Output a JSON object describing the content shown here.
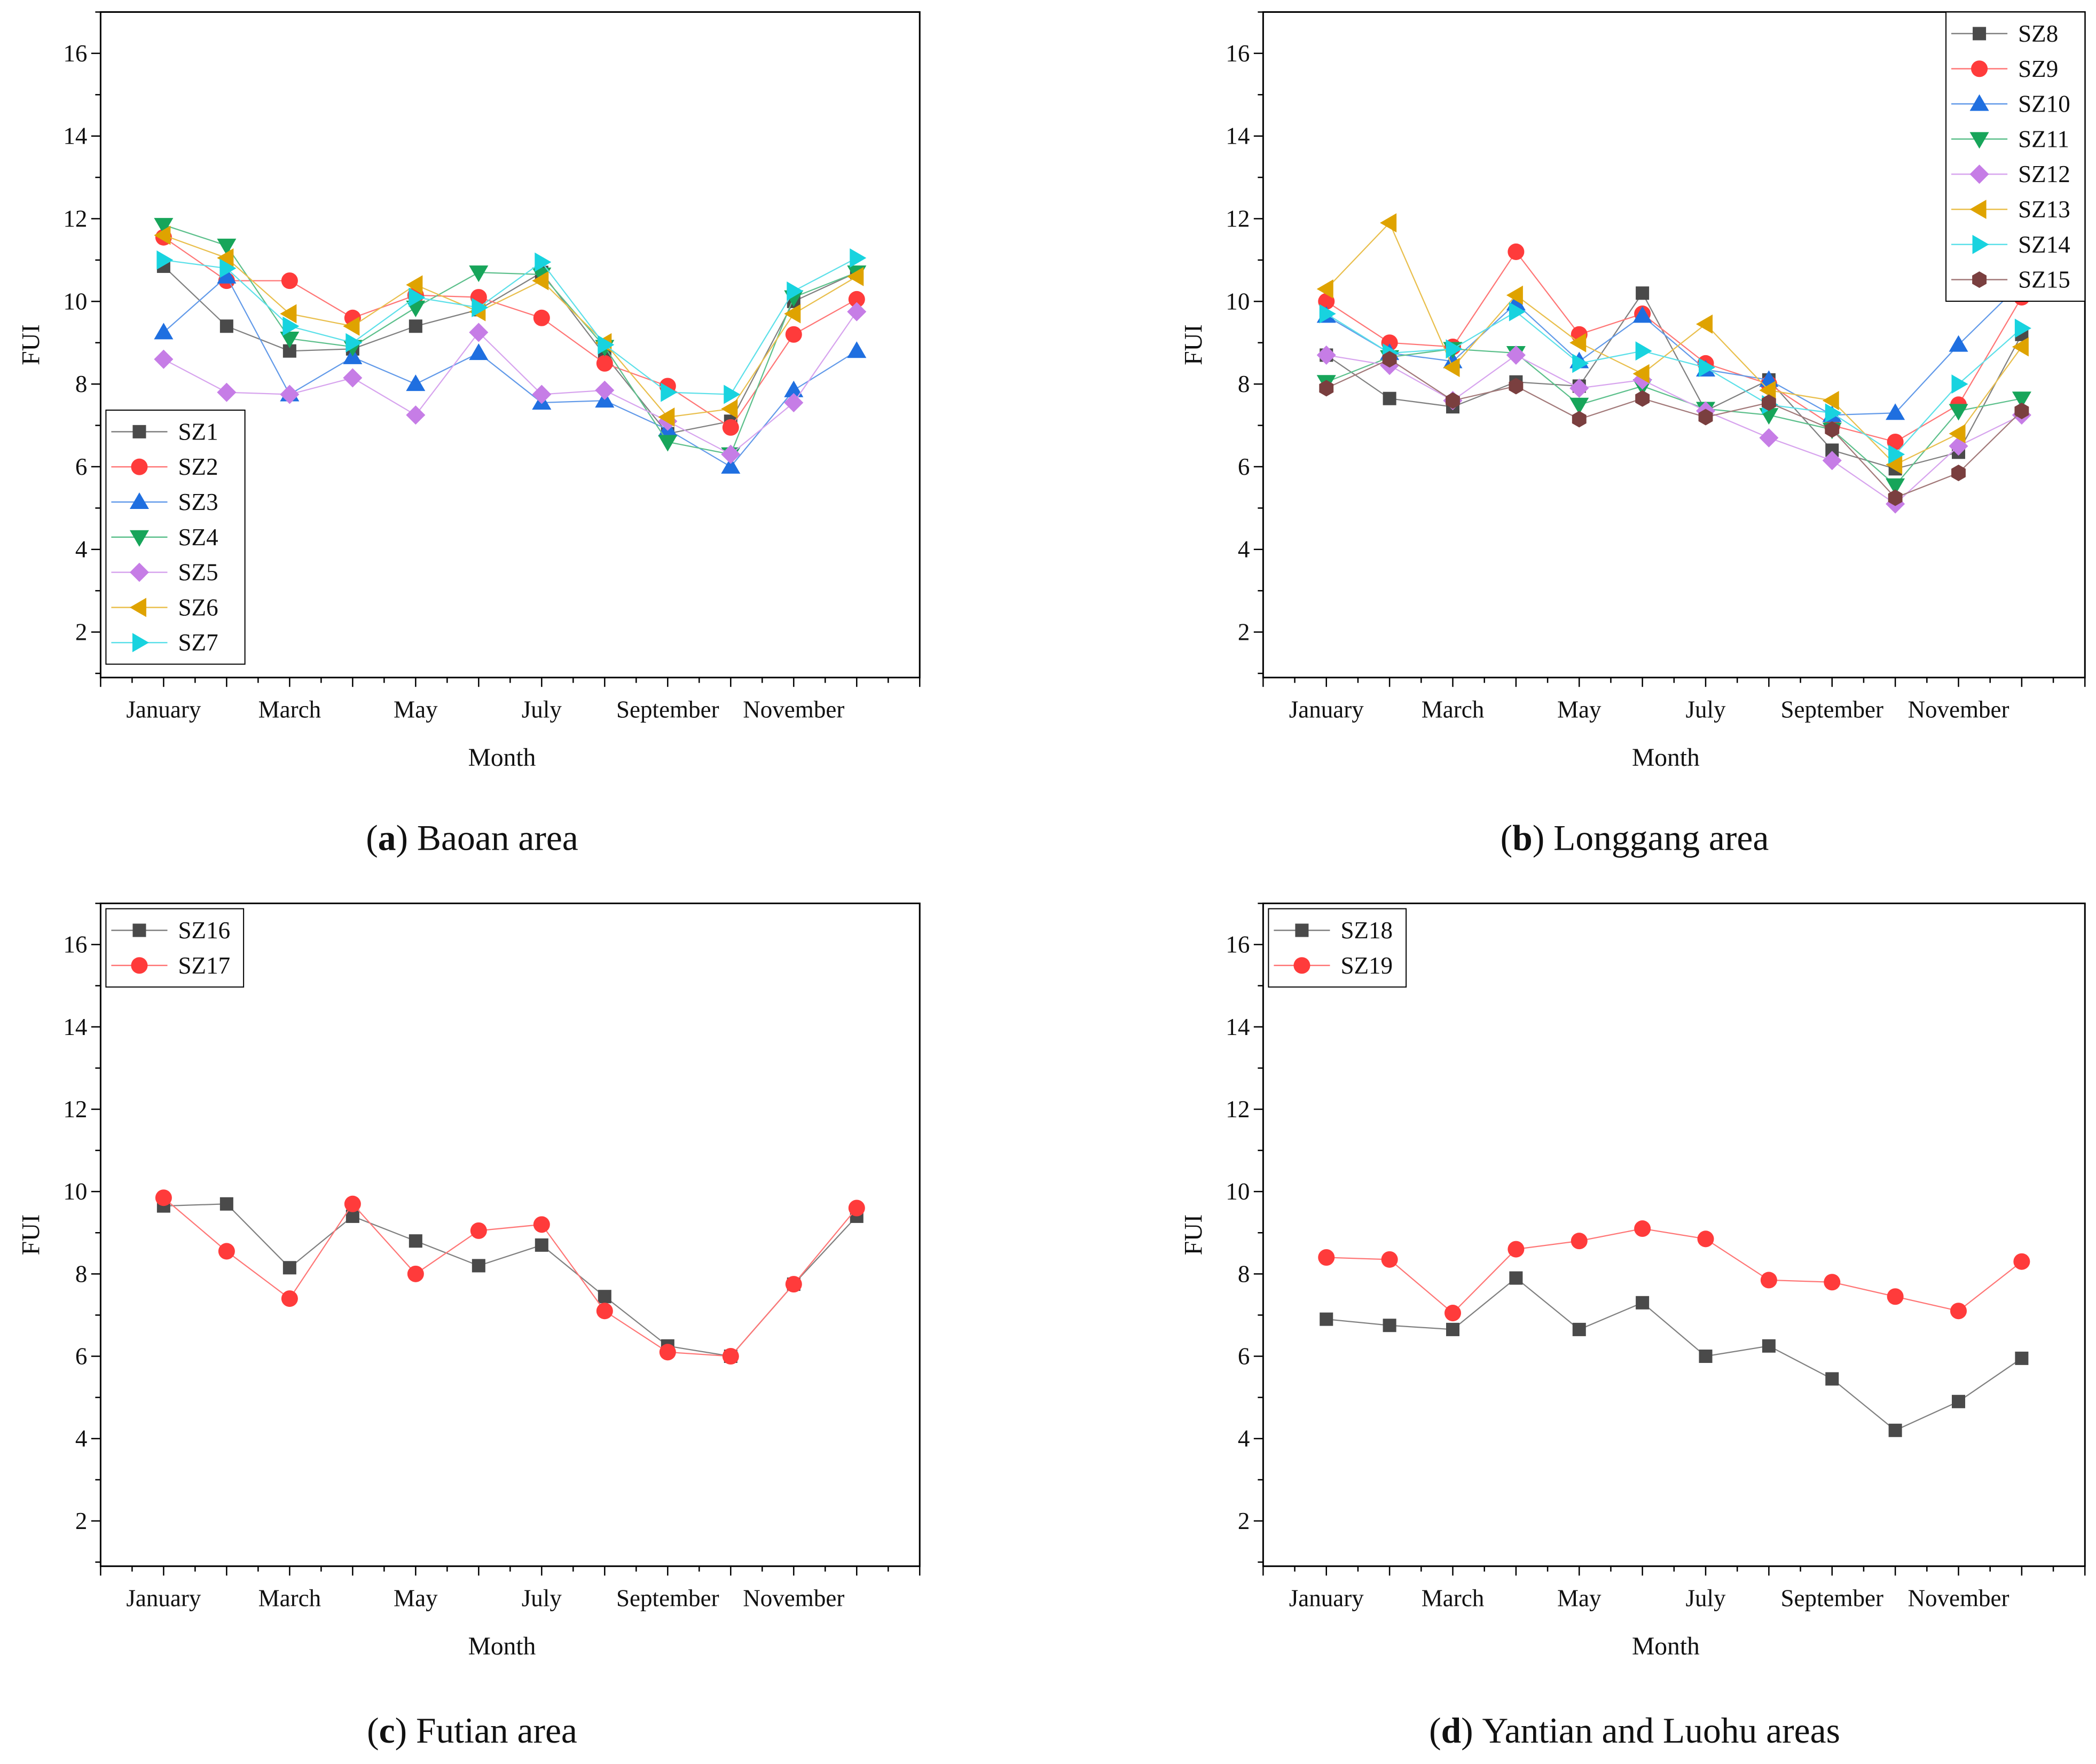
{
  "chart_data": [
    {
      "type": "line",
      "caption_letter": "a",
      "caption_text": "Baoan area",
      "xlabel": "Month",
      "ylabel": "FUI",
      "x_tick_labels": [
        "January",
        "March",
        "May",
        "July",
        "September",
        "November"
      ],
      "x": [
        1,
        2,
        3,
        4,
        5,
        6,
        7,
        8,
        9,
        10,
        11,
        12
      ],
      "xlim": [
        0,
        13
      ],
      "ylim": [
        0.9,
        17
      ],
      "y_ticks": [
        2,
        4,
        6,
        8,
        10,
        12,
        14,
        16
      ],
      "legend": "bottom-left",
      "series": [
        {
          "name": "SZ1",
          "marker": "square",
          "color": "#4a4a4a",
          "values": [
            10.85,
            9.4,
            8.8,
            8.85,
            9.4,
            9.8,
            10.7,
            8.7,
            6.8,
            7.1,
            10.0,
            10.7
          ]
        },
        {
          "name": "SZ2",
          "marker": "circle",
          "color": "#ff3b3b",
          "values": [
            11.55,
            10.5,
            10.5,
            9.6,
            10.15,
            10.1,
            9.6,
            8.5,
            7.95,
            6.95,
            9.2,
            10.05
          ]
        },
        {
          "name": "SZ3",
          "marker": "triangle-up",
          "color": "#1f6fe0",
          "values": [
            9.25,
            10.6,
            7.75,
            8.65,
            8.0,
            8.75,
            7.55,
            7.6,
            6.9,
            6.0,
            7.85,
            8.8
          ]
        },
        {
          "name": "SZ4",
          "marker": "triangle-down",
          "color": "#17a55a",
          "values": [
            11.85,
            11.35,
            9.1,
            8.9,
            9.85,
            10.7,
            10.65,
            8.9,
            6.6,
            6.3,
            10.1,
            10.7
          ]
        },
        {
          "name": "SZ5",
          "marker": "diamond",
          "color": "#c67de6",
          "values": [
            8.6,
            7.8,
            7.75,
            8.15,
            7.25,
            9.25,
            7.75,
            7.85,
            7.1,
            6.3,
            7.55,
            9.75
          ]
        },
        {
          "name": "SZ6",
          "marker": "triangle-left",
          "color": "#dfa300",
          "values": [
            11.6,
            11.05,
            9.7,
            9.4,
            10.4,
            9.75,
            10.5,
            9.0,
            7.2,
            7.4,
            9.7,
            10.6
          ]
        },
        {
          "name": "SZ7",
          "marker": "triangle-right",
          "color": "#18d3df",
          "values": [
            11.0,
            10.8,
            9.4,
            9.0,
            10.1,
            9.85,
            10.95,
            8.95,
            7.8,
            7.75,
            10.25,
            11.05
          ]
        }
      ]
    },
    {
      "type": "line",
      "caption_letter": "b",
      "caption_text": "Longgang area",
      "xlabel": "Month",
      "ylabel": "FUI",
      "x_tick_labels": [
        "January",
        "March",
        "May",
        "July",
        "September",
        "November"
      ],
      "x": [
        1,
        2,
        3,
        4,
        5,
        6,
        7,
        8,
        9,
        10,
        11,
        12
      ],
      "xlim": [
        0,
        13
      ],
      "ylim": [
        0.9,
        17
      ],
      "y_ticks": [
        2,
        4,
        6,
        8,
        10,
        12,
        14,
        16
      ],
      "legend": "top-right",
      "series": [
        {
          "name": "SZ8",
          "marker": "square",
          "color": "#4a4a4a",
          "values": [
            8.7,
            7.65,
            7.45,
            8.05,
            7.95,
            10.2,
            7.35,
            8.1,
            6.4,
            5.95,
            6.35,
            9.2
          ]
        },
        {
          "name": "SZ9",
          "marker": "circle",
          "color": "#ff3b3b",
          "values": [
            10.0,
            9.0,
            8.9,
            11.2,
            9.2,
            9.7,
            8.5,
            8.0,
            7.0,
            6.6,
            7.5,
            10.1
          ]
        },
        {
          "name": "SZ10",
          "marker": "triangle-up",
          "color": "#1f6fe0",
          "values": [
            9.65,
            8.75,
            8.55,
            9.95,
            8.55,
            9.65,
            8.35,
            8.1,
            7.25,
            7.3,
            8.95,
            10.45
          ]
        },
        {
          "name": "SZ11",
          "marker": "triangle-down",
          "color": "#17a55a",
          "values": [
            8.05,
            8.65,
            8.85,
            8.75,
            7.5,
            7.95,
            7.4,
            7.25,
            6.9,
            5.55,
            7.35,
            7.65
          ]
        },
        {
          "name": "SZ12",
          "marker": "diamond",
          "color": "#c67de6",
          "values": [
            8.7,
            8.45,
            7.6,
            8.7,
            7.9,
            8.1,
            7.35,
            6.7,
            6.15,
            5.1,
            6.5,
            7.25
          ]
        },
        {
          "name": "SZ13",
          "marker": "triangle-left",
          "color": "#dfa300",
          "values": [
            10.3,
            11.9,
            8.4,
            10.15,
            9.0,
            8.25,
            9.45,
            7.85,
            7.6,
            6.05,
            6.8,
            8.9
          ]
        },
        {
          "name": "SZ14",
          "marker": "triangle-right",
          "color": "#18d3df",
          "values": [
            9.7,
            8.75,
            8.85,
            9.75,
            8.5,
            8.8,
            8.4,
            7.5,
            7.3,
            6.3,
            8.0,
            9.35
          ]
        },
        {
          "name": "SZ15",
          "marker": "hexagon",
          "color": "#7a3f3f",
          "values": [
            7.9,
            8.6,
            7.6,
            7.95,
            7.15,
            7.65,
            7.2,
            7.55,
            6.9,
            5.25,
            5.85,
            7.35
          ]
        }
      ]
    },
    {
      "type": "line",
      "caption_letter": "c",
      "caption_text": "Futian area",
      "xlabel": "Month",
      "ylabel": "FUI",
      "x_tick_labels": [
        "January",
        "March",
        "May",
        "July",
        "September",
        "November"
      ],
      "x": [
        1,
        2,
        3,
        4,
        5,
        6,
        7,
        8,
        9,
        10,
        11,
        12
      ],
      "xlim": [
        0,
        13
      ],
      "ylim": [
        0.9,
        17
      ],
      "y_ticks": [
        2,
        4,
        6,
        8,
        10,
        12,
        14,
        16
      ],
      "legend": "top-left",
      "series": [
        {
          "name": "SZ16",
          "marker": "square",
          "color": "#4a4a4a",
          "values": [
            9.65,
            9.7,
            8.15,
            9.4,
            8.8,
            8.2,
            8.7,
            7.45,
            6.25,
            6.0,
            7.75,
            9.4
          ]
        },
        {
          "name": "SZ17",
          "marker": "circle",
          "color": "#ff3b3b",
          "values": [
            9.85,
            8.55,
            7.4,
            9.7,
            8.0,
            9.05,
            9.2,
            7.1,
            6.1,
            6.0,
            7.75,
            9.6
          ]
        }
      ]
    },
    {
      "type": "line",
      "caption_letter": "d",
      "caption_text": "Yantian and Luohu areas",
      "xlabel": "Month",
      "ylabel": "FUI",
      "x_tick_labels": [
        "January",
        "March",
        "May",
        "July",
        "September",
        "November"
      ],
      "x": [
        1,
        2,
        3,
        4,
        5,
        6,
        7,
        8,
        9,
        10,
        11,
        12
      ],
      "xlim": [
        0,
        13
      ],
      "ylim": [
        0.9,
        17
      ],
      "y_ticks": [
        2,
        4,
        6,
        8,
        10,
        12,
        14,
        16
      ],
      "legend": "top-left",
      "series": [
        {
          "name": "SZ18",
          "marker": "square",
          "color": "#4a4a4a",
          "values": [
            6.9,
            6.75,
            6.65,
            7.9,
            6.65,
            7.3,
            6.0,
            6.25,
            5.45,
            4.2,
            4.9,
            5.95
          ]
        },
        {
          "name": "SZ19",
          "marker": "circle",
          "color": "#ff3b3b",
          "values": [
            8.4,
            8.35,
            7.05,
            8.6,
            8.8,
            9.1,
            8.85,
            7.85,
            7.8,
            7.45,
            7.1,
            8.3
          ]
        }
      ]
    }
  ]
}
